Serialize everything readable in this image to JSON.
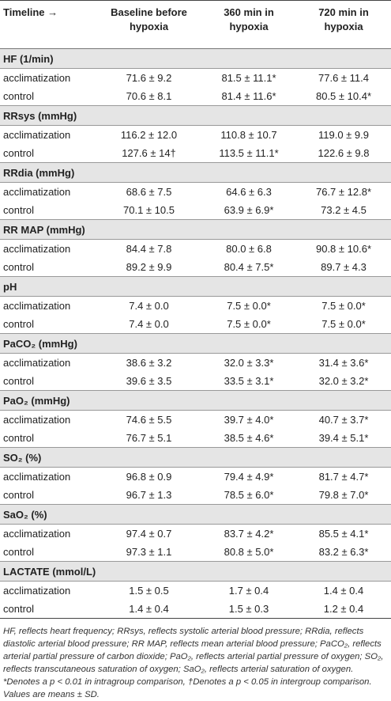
{
  "table": {
    "header": [
      "Timeline →",
      "Baseline before hypoxia",
      "360 min in hypoxia",
      "720 min in hypoxia"
    ],
    "sections": [
      {
        "title": "HF (1/min)",
        "rows": [
          [
            "acclimatization",
            "71.6 ± 9.2",
            "81.5 ± 11.1*",
            "77.6 ± 11.4"
          ],
          [
            "control",
            "70.6 ± 8.1",
            "81.4 ± 11.6*",
            "80.5 ± 10.4*"
          ]
        ]
      },
      {
        "title": "RRsys (mmHg)",
        "rows": [
          [
            "acclimatization",
            "116.2 ± 12.0",
            "110.8 ± 10.7",
            "119.0 ± 9.9"
          ],
          [
            "control",
            "127.6 ± 14†",
            "113.5 ± 11.1*",
            "122.6 ± 9.8"
          ]
        ]
      },
      {
        "title": "RRdia (mmHg)",
        "rows": [
          [
            "acclimatization",
            "68.6 ± 7.5",
            "64.6 ± 6.3",
            "76.7 ± 12.8*"
          ],
          [
            "control",
            "70.1 ± 10.5",
            "63.9 ± 6.9*",
            "73.2 ± 4.5"
          ]
        ]
      },
      {
        "title": "RR MAP (mmHg)",
        "rows": [
          [
            "acclimatization",
            "84.4 ± 7.8",
            "80.0 ± 6.8",
            "90.8 ± 10.6*"
          ],
          [
            "control",
            "89.2 ± 9.9",
            "80.4 ± 7.5*",
            "89.7 ± 4.3"
          ]
        ]
      },
      {
        "title": "pH",
        "rows": [
          [
            "acclimatization",
            "7.4 ± 0.0",
            "7.5 ± 0.0*",
            "7.5 ± 0.0*"
          ],
          [
            "control",
            "7.4 ± 0.0",
            "7.5 ± 0.0*",
            "7.5 ± 0.0*"
          ]
        ]
      },
      {
        "title": "PaCO₂ (mmHg)",
        "rows": [
          [
            "acclimatization",
            "38.6 ± 3.2",
            "32.0 ± 3.3*",
            "31.4 ± 3.6*"
          ],
          [
            "control",
            "39.6 ± 3.5",
            "33.5 ± 3.1*",
            "32.0 ± 3.2*"
          ]
        ]
      },
      {
        "title": "PaO₂ (mmHg)",
        "rows": [
          [
            "acclimatization",
            "74.6 ± 5.5",
            "39.7 ± 4.0*",
            "40.7 ± 3.7*"
          ],
          [
            "control",
            "76.7 ± 5.1",
            "38.5 ± 4.6*",
            "39.4 ± 5.1*"
          ]
        ]
      },
      {
        "title": "SO₂ (%)",
        "rows": [
          [
            "acclimatization",
            "96.8 ± 0.9",
            "79.4 ± 4.9*",
            "81.7 ± 4.7*"
          ],
          [
            "control",
            "96.7 ± 1.3",
            "78.5 ± 6.0*",
            "79.8 ± 7.0*"
          ]
        ]
      },
      {
        "title": "SaO₂ (%)",
        "rows": [
          [
            "acclimatization",
            "97.4 ± 0.7",
            "83.7 ± 4.2*",
            "85.5 ± 4.1*"
          ],
          [
            "control",
            "97.3 ± 1.1",
            "80.8 ± 5.0*",
            "83.2 ± 6.3*"
          ]
        ]
      },
      {
        "title": "LACTATE (mmol/L)",
        "rows": [
          [
            "acclimatization",
            "1.5 ± 0.5",
            "1.7 ± 0.4",
            "1.4 ± 0.4"
          ],
          [
            "control",
            "1.4 ± 0.4",
            "1.5 ± 0.3",
            "1.2 ± 0.4"
          ]
        ]
      }
    ],
    "footnote": "HF, reflects heart frequency; RRsys, reflects systolic arterial blood pressure; RRdia, reflects diastolic arterial blood pressure; RR MAP, reflects mean arterial blood pressure; PaCO₂, reflects arterial partial pressure of carbon dioxide; PaO₂, reflects arterial partial pressure of oxygen; SO₂, reflects transcutaneous saturation of oxygen; SaO₂, reflects arterial saturation of oxygen. *Denotes a p < 0.01 in intragroup comparison, †Denotes a p < 0.05 in intergroup comparison. Values are means ± SD."
  }
}
